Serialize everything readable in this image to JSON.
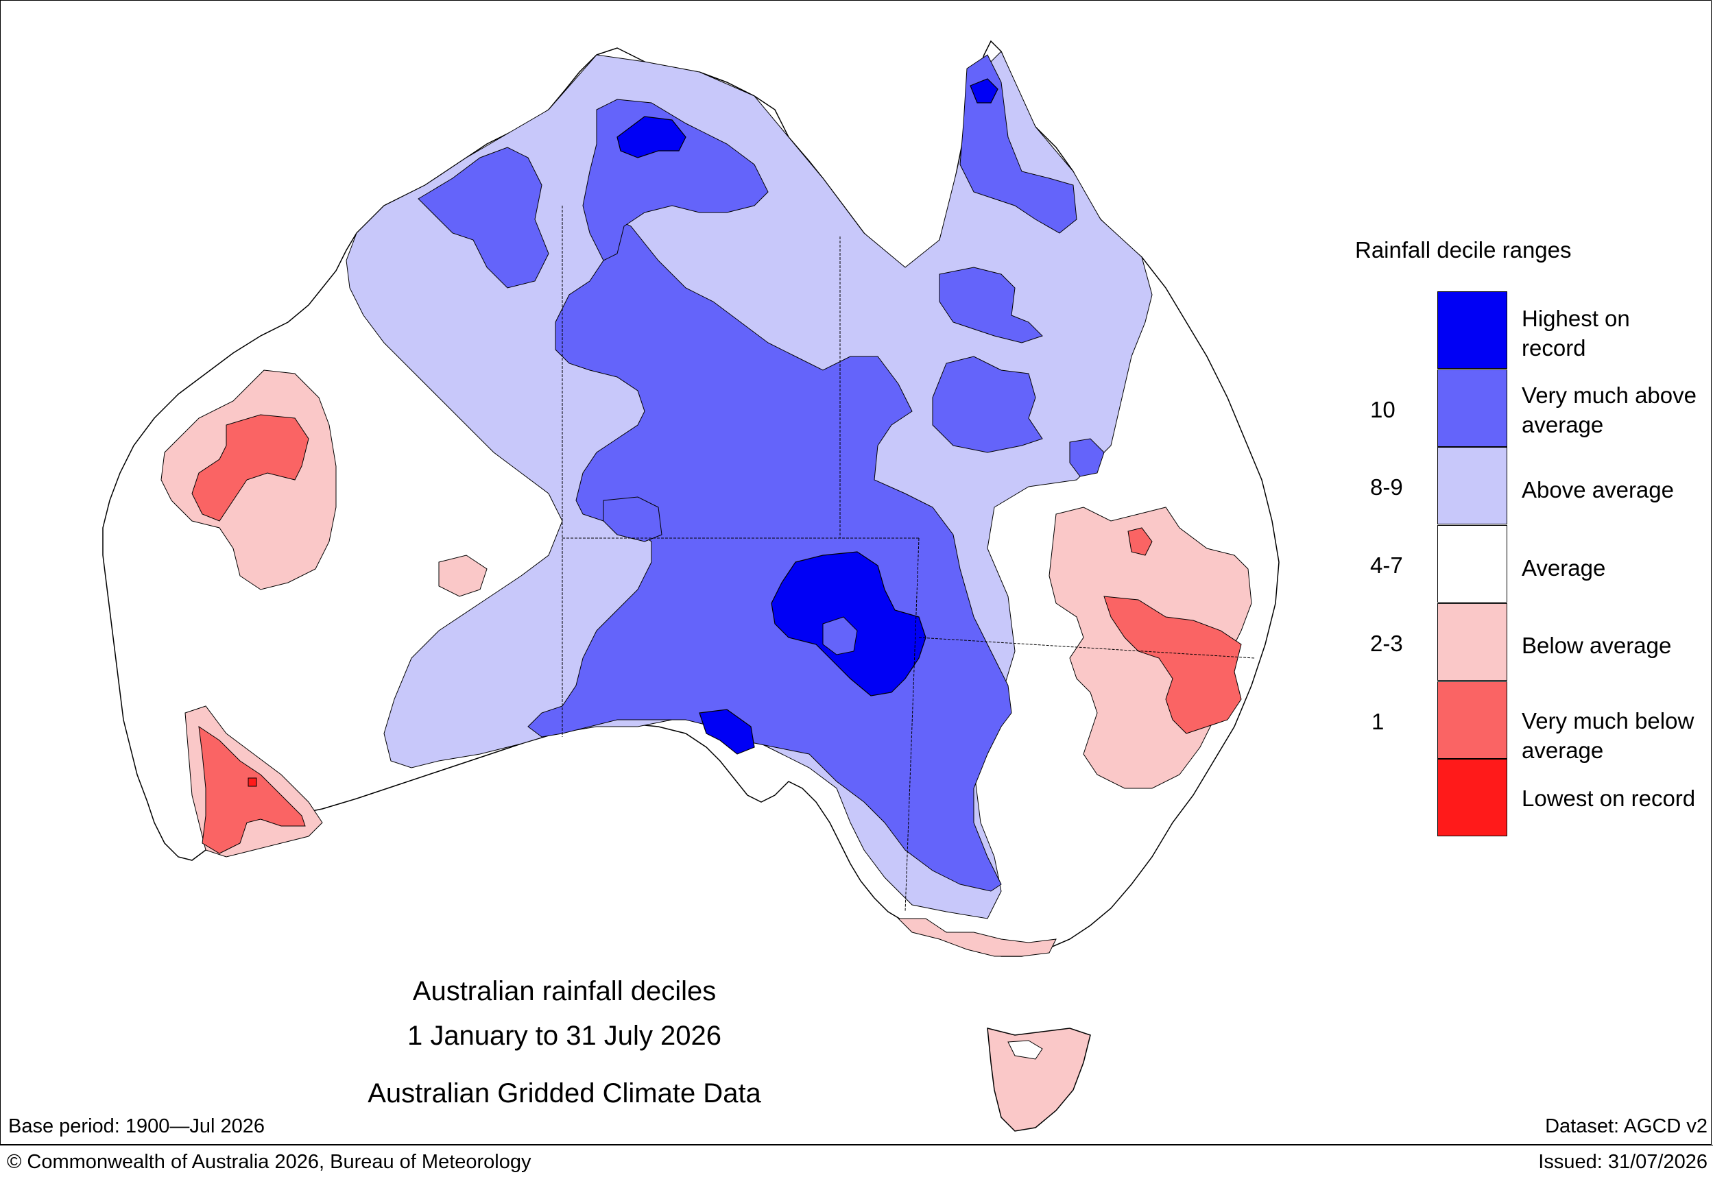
{
  "title": {
    "line1": "Australian rainfall deciles",
    "line2": "1 January to 31 July 2026",
    "line3": "Australian Gridded Climate Data"
  },
  "footer": {
    "base_period": "Base period: 1900—Jul 2026",
    "dataset": "Dataset: AGCD v2",
    "copyright": "© Commonwealth of Australia 2026, Bureau of Meteorology",
    "issued": "Issued: 31/07/2026"
  },
  "legend": {
    "title": "Rainfall decile ranges",
    "items": [
      {
        "label": "Highest on record",
        "range": "",
        "color": "#0000f5"
      },
      {
        "label": "Very much above average",
        "range": "10",
        "color": "#6464fa"
      },
      {
        "label": "Above average",
        "range": "8-9",
        "color": "#c8c8fa"
      },
      {
        "label": "Average",
        "range": "4-7",
        "color": "#ffffff"
      },
      {
        "label": "Below average",
        "range": "2-3",
        "color": "#fac8c8"
      },
      {
        "label": "Very much below average",
        "range": "1",
        "color": "#fa6464"
      },
      {
        "label": "Lowest on record",
        "range": "",
        "color": "#ff1a1a"
      }
    ]
  }
}
